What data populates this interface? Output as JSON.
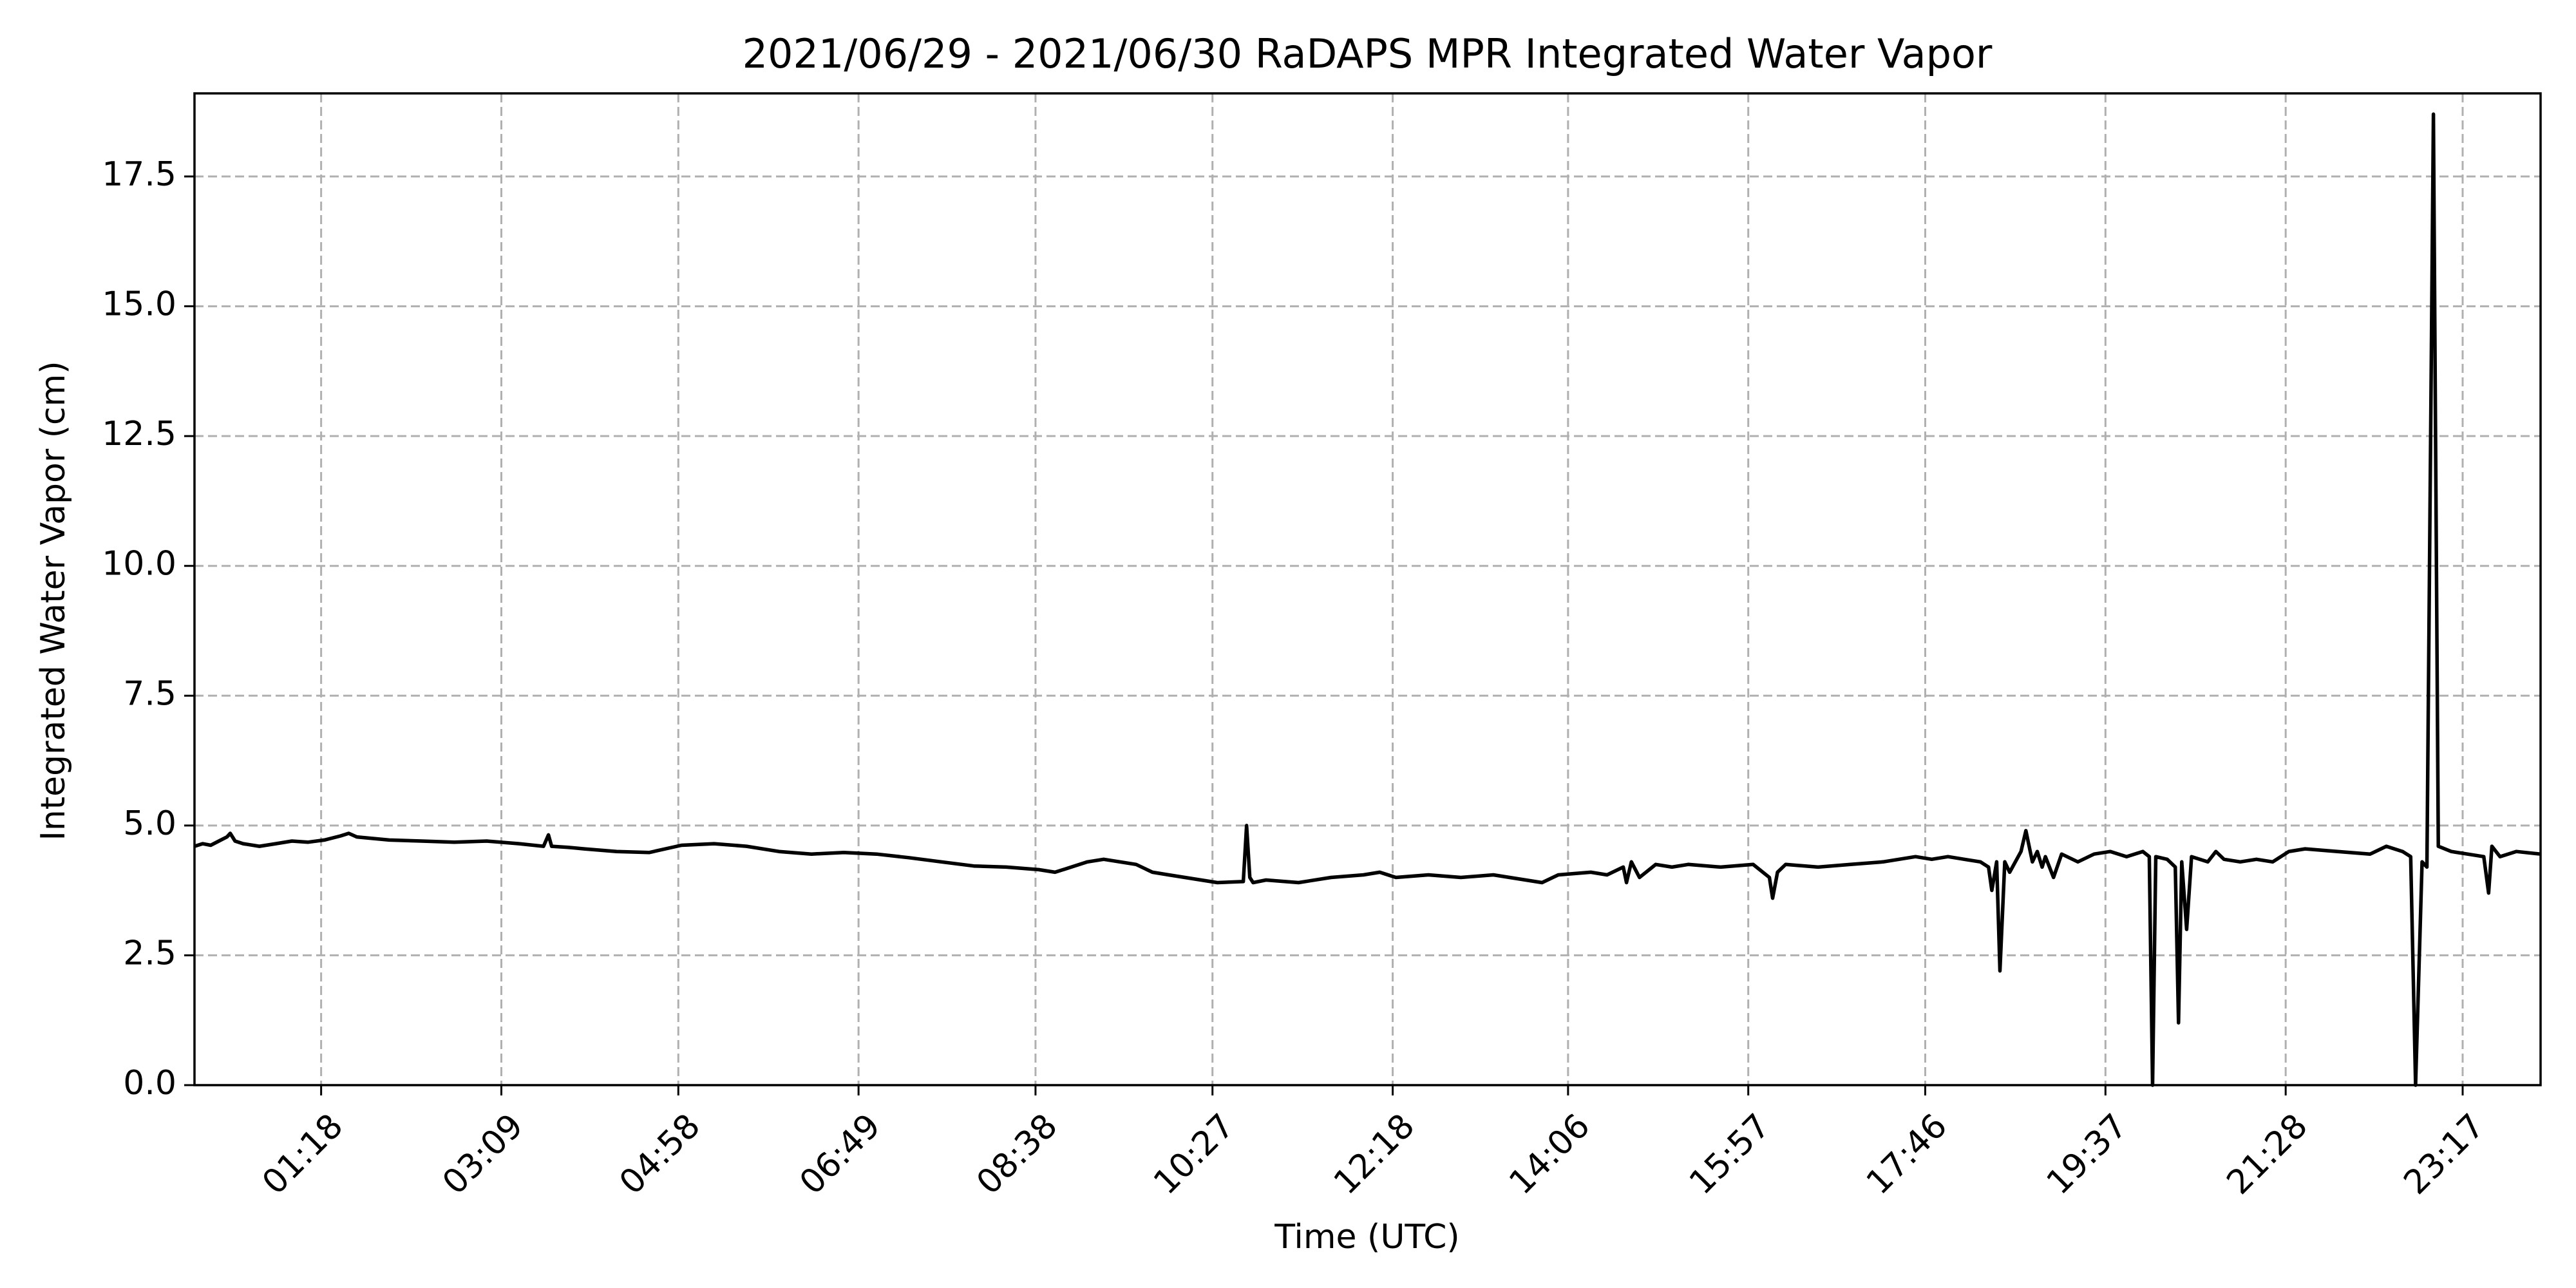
{
  "chart_data": {
    "type": "line",
    "title": "2021/06/29 - 2021/06/30 RaDAPS MPR Integrated Water Vapor",
    "xlabel": "Time (UTC)",
    "ylabel": "Integrated Water Vapor (cm)",
    "x_axis": {
      "unit": "minutes since 00:00 UTC",
      "range": [
        0,
        1445
      ],
      "ticks": [
        {
          "value": 78,
          "label": "01:18"
        },
        {
          "value": 189,
          "label": "03:09"
        },
        {
          "value": 298,
          "label": "04:58"
        },
        {
          "value": 409,
          "label": "06:49"
        },
        {
          "value": 518,
          "label": "08:38"
        },
        {
          "value": 627,
          "label": "10:27"
        },
        {
          "value": 738,
          "label": "12:18"
        },
        {
          "value": 846,
          "label": "14:06"
        },
        {
          "value": 957,
          "label": "15:57"
        },
        {
          "value": 1066,
          "label": "17:46"
        },
        {
          "value": 1177,
          "label": "19:37"
        },
        {
          "value": 1288,
          "label": "21:28"
        },
        {
          "value": 1397,
          "label": "23:17"
        }
      ]
    },
    "y_axis": {
      "range": [
        0,
        19.1
      ],
      "ticks": [
        {
          "value": 0,
          "label": "0.0"
        },
        {
          "value": 2.5,
          "label": "2.5"
        },
        {
          "value": 5,
          "label": "5.0"
        },
        {
          "value": 7.5,
          "label": "7.5"
        },
        {
          "value": 10,
          "label": "10.0"
        },
        {
          "value": 12.5,
          "label": "12.5"
        },
        {
          "value": 15,
          "label": "15.0"
        },
        {
          "value": 17.5,
          "label": "17.5"
        }
      ]
    },
    "grid": true,
    "series": [
      {
        "color": "#000000",
        "points": [
          [
            0,
            4.6
          ],
          [
            5,
            4.65
          ],
          [
            10,
            4.62
          ],
          [
            15,
            4.7
          ],
          [
            20,
            4.78
          ],
          [
            22,
            4.85
          ],
          [
            25,
            4.7
          ],
          [
            30,
            4.65
          ],
          [
            40,
            4.6
          ],
          [
            50,
            4.65
          ],
          [
            60,
            4.7
          ],
          [
            70,
            4.68
          ],
          [
            80,
            4.72
          ],
          [
            90,
            4.8
          ],
          [
            95,
            4.85
          ],
          [
            100,
            4.78
          ],
          [
            110,
            4.75
          ],
          [
            120,
            4.72
          ],
          [
            140,
            4.7
          ],
          [
            160,
            4.68
          ],
          [
            180,
            4.7
          ],
          [
            200,
            4.65
          ],
          [
            215,
            4.6
          ],
          [
            218,
            4.82
          ],
          [
            220,
            4.6
          ],
          [
            230,
            4.58
          ],
          [
            240,
            4.55
          ],
          [
            260,
            4.5
          ],
          [
            280,
            4.48
          ],
          [
            300,
            4.62
          ],
          [
            320,
            4.65
          ],
          [
            340,
            4.6
          ],
          [
            360,
            4.5
          ],
          [
            380,
            4.45
          ],
          [
            400,
            4.48
          ],
          [
            420,
            4.45
          ],
          [
            440,
            4.38
          ],
          [
            460,
            4.3
          ],
          [
            480,
            4.22
          ],
          [
            500,
            4.2
          ],
          [
            520,
            4.15
          ],
          [
            530,
            4.1
          ],
          [
            540,
            4.2
          ],
          [
            550,
            4.3
          ],
          [
            560,
            4.35
          ],
          [
            570,
            4.3
          ],
          [
            580,
            4.25
          ],
          [
            590,
            4.1
          ],
          [
            600,
            4.05
          ],
          [
            610,
            4.0
          ],
          [
            620,
            3.95
          ],
          [
            630,
            3.9
          ],
          [
            646,
            3.92
          ],
          [
            648,
            5.0
          ],
          [
            650,
            4.0
          ],
          [
            652,
            3.9
          ],
          [
            660,
            3.95
          ],
          [
            680,
            3.9
          ],
          [
            700,
            4.0
          ],
          [
            720,
            4.05
          ],
          [
            730,
            4.1
          ],
          [
            740,
            4.0
          ],
          [
            760,
            4.05
          ],
          [
            780,
            4.0
          ],
          [
            800,
            4.05
          ],
          [
            820,
            3.95
          ],
          [
            830,
            3.9
          ],
          [
            840,
            4.05
          ],
          [
            860,
            4.1
          ],
          [
            870,
            4.05
          ],
          [
            880,
            4.2
          ],
          [
            882,
            3.9
          ],
          [
            885,
            4.3
          ],
          [
            890,
            4.0
          ],
          [
            900,
            4.25
          ],
          [
            910,
            4.2
          ],
          [
            920,
            4.25
          ],
          [
            940,
            4.2
          ],
          [
            960,
            4.25
          ],
          [
            970,
            4.0
          ],
          [
            972,
            3.6
          ],
          [
            975,
            4.1
          ],
          [
            980,
            4.25
          ],
          [
            1000,
            4.2
          ],
          [
            1020,
            4.25
          ],
          [
            1040,
            4.3
          ],
          [
            1060,
            4.4
          ],
          [
            1070,
            4.35
          ],
          [
            1080,
            4.4
          ],
          [
            1090,
            4.35
          ],
          [
            1100,
            4.3
          ],
          [
            1105,
            4.2
          ],
          [
            1107,
            3.75
          ],
          [
            1110,
            4.3
          ],
          [
            1112,
            2.2
          ],
          [
            1115,
            4.3
          ],
          [
            1118,
            4.1
          ],
          [
            1125,
            4.5
          ],
          [
            1128,
            4.9
          ],
          [
            1132,
            4.3
          ],
          [
            1135,
            4.5
          ],
          [
            1138,
            4.2
          ],
          [
            1140,
            4.4
          ],
          [
            1145,
            4.0
          ],
          [
            1150,
            4.45
          ],
          [
            1160,
            4.3
          ],
          [
            1170,
            4.45
          ],
          [
            1180,
            4.5
          ],
          [
            1190,
            4.4
          ],
          [
            1200,
            4.5
          ],
          [
            1204,
            4.4
          ],
          [
            1206,
            0.0
          ],
          [
            1208,
            4.4
          ],
          [
            1215,
            4.35
          ],
          [
            1220,
            4.2
          ],
          [
            1222,
            1.2
          ],
          [
            1224,
            4.3
          ],
          [
            1227,
            3.0
          ],
          [
            1230,
            4.4
          ],
          [
            1240,
            4.3
          ],
          [
            1245,
            4.5
          ],
          [
            1250,
            4.35
          ],
          [
            1260,
            4.3
          ],
          [
            1270,
            4.35
          ],
          [
            1280,
            4.3
          ],
          [
            1290,
            4.5
          ],
          [
            1300,
            4.55
          ],
          [
            1320,
            4.5
          ],
          [
            1340,
            4.45
          ],
          [
            1350,
            4.6
          ],
          [
            1360,
            4.5
          ],
          [
            1365,
            4.4
          ],
          [
            1368,
            0.0
          ],
          [
            1372,
            4.3
          ],
          [
            1375,
            4.2
          ],
          [
            1379,
            18.7
          ],
          [
            1382,
            4.6
          ],
          [
            1390,
            4.5
          ],
          [
            1400,
            4.45
          ],
          [
            1410,
            4.4
          ],
          [
            1413,
            3.7
          ],
          [
            1415,
            4.6
          ],
          [
            1420,
            4.4
          ],
          [
            1430,
            4.5
          ],
          [
            1445,
            4.45
          ]
        ]
      }
    ]
  }
}
